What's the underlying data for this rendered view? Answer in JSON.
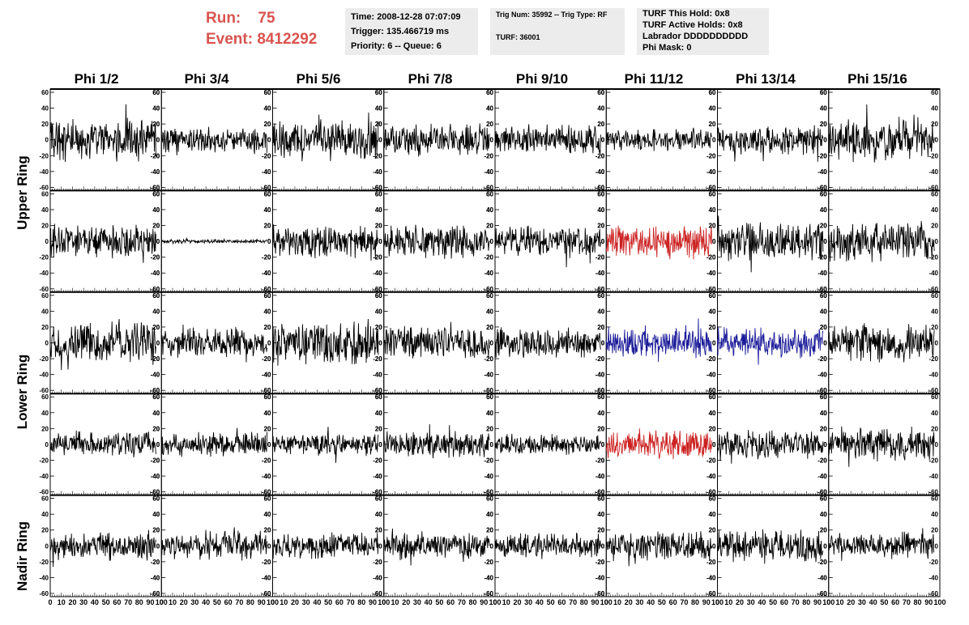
{
  "header": {
    "run_label": "Run:",
    "run_value": "75",
    "event_label": "Event:",
    "event_value": "8412292",
    "time": "Time: 2008-12-28 07:07:09",
    "trigger": "Trigger: 135.466719 ms",
    "priority": "Priority: 6 -- Queue: 6",
    "trig_num": "Trig Num: 35992 -- Trig Type: RF",
    "turf": "TURF: 36001",
    "turf_this_hold": "TURF This Hold: 0x8",
    "turf_active_holds": "TURF Active Holds: 0x8",
    "labrador": "Labrador DDDDDDDDDD",
    "phi_mask": "Phi Mask: 0"
  },
  "columns": [
    "Phi 1/2",
    "Phi 3/4",
    "Phi 5/6",
    "Phi 7/8",
    "Phi 9/10",
    "Phi 11/12",
    "Phi 13/14",
    "Phi 15/16"
  ],
  "rings": [
    "Upper Ring",
    "Lower Ring",
    "Nadir Ring"
  ],
  "colors": {
    "accent_red_text": "#d9534f",
    "trace_default": "#000000",
    "trace_red": "#cc2222",
    "trace_blue": "#1a1a99",
    "info_bg": "#ececec"
  },
  "chart_data": {
    "type": "line",
    "description_units": "waveform amplitude vs sample",
    "ylim": [
      -60,
      60
    ],
    "xlim": [
      0,
      100
    ],
    "yticks": [
      -60,
      -40,
      -20,
      0,
      20,
      40,
      60
    ],
    "xticks": [
      0,
      10,
      20,
      30,
      40,
      50,
      60,
      70,
      80,
      90,
      100
    ],
    "xtick_labels": [
      "0",
      "10",
      "20",
      "30",
      "40",
      "50",
      "60",
      "70",
      "80",
      "90",
      "100"
    ],
    "panel_rows": 5,
    "panel_cols": 8,
    "amplitude_rows": [
      [
        20,
        12,
        18,
        15,
        14,
        10,
        14,
        20
      ],
      [
        16,
        2,
        16,
        16,
        14,
        16,
        18,
        20
      ],
      [
        20,
        14,
        22,
        16,
        14,
        14,
        14,
        18
      ],
      [
        12,
        12,
        10,
        12,
        10,
        14,
        14,
        16
      ],
      [
        14,
        14,
        12,
        12,
        12,
        14,
        16,
        12
      ]
    ],
    "trace_color_rows": [
      [
        "default",
        "default",
        "default",
        "default",
        "default",
        "default",
        "default",
        "default"
      ],
      [
        "default",
        "default",
        "default",
        "default",
        "default",
        "red",
        "default",
        "default"
      ],
      [
        "default",
        "default",
        "default",
        "default",
        "default",
        "blue",
        "blue",
        "default"
      ],
      [
        "default",
        "default",
        "default",
        "default",
        "default",
        "red",
        "default",
        "default"
      ],
      [
        "default",
        "default",
        "default",
        "default",
        "default",
        "default",
        "default",
        "default"
      ]
    ]
  }
}
